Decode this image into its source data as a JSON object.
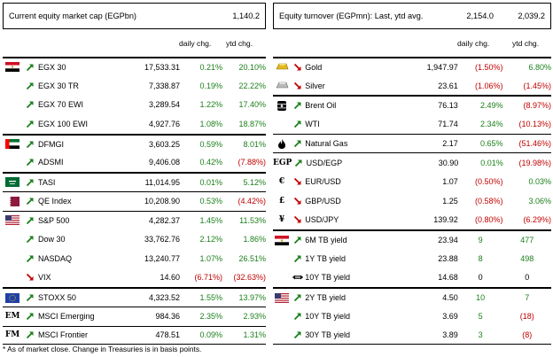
{
  "left": {
    "title": "Current equity market cap (EGPbn)",
    "value": "1,140.2",
    "col_daily": "daily chg.",
    "col_ytd": "ytd chg.",
    "rows": [
      {
        "name": "EGX 30",
        "value": "17,533.31",
        "daily": "0.21%",
        "ytd": "20.10%",
        "flag": "egypt-flag-icon",
        "dir": "up",
        "dtone": "pos",
        "ytone": "pos",
        "sep": "sep2"
      },
      {
        "name": "EGX 30 TR",
        "value": "7,338.87",
        "daily": "0.19%",
        "ytd": "22.22%",
        "dir": "up",
        "dtone": "pos",
        "ytone": "pos"
      },
      {
        "name": "EGX 70 EWI",
        "value": "3,289.54",
        "daily": "1.22%",
        "ytd": "17.40%",
        "dir": "up",
        "dtone": "pos",
        "ytone": "pos"
      },
      {
        "name": "EGX 100 EWI",
        "value": "4,927.76",
        "daily": "1.08%",
        "ytd": "18.87%",
        "dir": "up",
        "dtone": "pos",
        "ytone": "pos"
      },
      {
        "name": "DFMGI",
        "value": "3,603.25",
        "daily": "0.59%",
        "ytd": "8.01%",
        "flag": "uae-flag-icon",
        "dir": "up",
        "dtone": "pos",
        "ytone": "pos",
        "sep": "sep2"
      },
      {
        "name": "ADSMI",
        "value": "9,406.08",
        "daily": "0.42%",
        "ytd": "(7.88%)",
        "dir": "up",
        "dtone": "pos",
        "ytone": "neg"
      },
      {
        "name": "TASI",
        "value": "11,014.95",
        "daily": "0.01%",
        "ytd": "5.12%",
        "flag": "saudi-flag-icon",
        "dir": "up",
        "dtone": "pos",
        "ytone": "pos",
        "sep": "sep2"
      },
      {
        "name": "QE Index",
        "value": "10,208.90",
        "daily": "0.53%",
        "ytd": "(4.42%)",
        "flag": "qatar-flag-icon",
        "dir": "up",
        "dtone": "pos",
        "ytone": "neg",
        "sep": "sep"
      },
      {
        "name": "S&P 500",
        "value": "4,282.37",
        "daily": "1.45%",
        "ytd": "11.53%",
        "flag": "usa-flag-icon",
        "dir": "up",
        "dtone": "pos",
        "ytone": "pos",
        "sep": "sep"
      },
      {
        "name": "Dow 30",
        "value": "33,762.76",
        "daily": "2.12%",
        "ytd": "1.86%",
        "dir": "up",
        "dtone": "pos",
        "ytone": "pos"
      },
      {
        "name": "NASDAQ",
        "value": "13,240.77",
        "daily": "1.07%",
        "ytd": "26.51%",
        "dir": "up",
        "dtone": "pos",
        "ytone": "pos"
      },
      {
        "name": "VIX",
        "value": "14.60",
        "daily": "(6.71%)",
        "ytd": "(32.63%)",
        "dir": "down",
        "dtone": "neg",
        "ytone": "neg"
      },
      {
        "name": "STOXX 50",
        "value": "4,323.52",
        "daily": "1.55%",
        "ytd": "13.97%",
        "flag": "eu-flag-icon",
        "dir": "up",
        "dtone": "pos",
        "ytone": "pos",
        "sep": "sep2"
      },
      {
        "name": "MSCI Emerging",
        "value": "984.36",
        "daily": "2.35%",
        "ytd": "2.93%",
        "flag": "em-text-icon",
        "icontext": "EM",
        "dir": "up",
        "dtone": "pos",
        "ytone": "pos",
        "sep": "sep"
      },
      {
        "name": "MSCI Frontier",
        "value": "478.51",
        "daily": "0.09%",
        "ytd": "1.31%",
        "flag": "fm-text-icon",
        "icontext": "FM",
        "dir": "up",
        "dtone": "pos",
        "ytone": "pos",
        "sep": "sep"
      }
    ]
  },
  "right": {
    "title": "Equity turnover (EGPmn): Last, ytd avg.",
    "value1": "2,154.0",
    "value2": "2,039.2",
    "col_daily": "daily chg.",
    "col_ytd": "ytd chg.",
    "rows": [
      {
        "name": "Gold",
        "value": "1,947.97",
        "daily": "(1.50%)",
        "ytd": "6.80%",
        "flag": "gold-bar-icon",
        "dir": "down",
        "dtone": "neg",
        "ytone": "pos",
        "sep": "sep2"
      },
      {
        "name": "Silver",
        "value": "23.61",
        "daily": "(1.06%)",
        "ytd": "(1.45%)",
        "flag": "silver-bar-icon",
        "dir": "down",
        "dtone": "neg",
        "ytone": "neg"
      },
      {
        "name": "Brent Oil",
        "value": "76.13",
        "daily": "2.49%",
        "ytd": "(8.97%)",
        "flag": "oil-barrel-icon",
        "dir": "up",
        "dtone": "pos",
        "ytone": "neg",
        "sep": "sep2"
      },
      {
        "name": "WTI",
        "value": "71.74",
        "daily": "2.34%",
        "ytd": "(10.13%)",
        "dir": "up",
        "dtone": "pos",
        "ytone": "neg"
      },
      {
        "name": "Natural Gas",
        "value": "2.17",
        "daily": "0.65%",
        "ytd": "(51.46%)",
        "flag": "flame-icon",
        "dir": "up",
        "dtone": "pos",
        "ytone": "neg",
        "sep": "sep"
      },
      {
        "name": "USD/EGP",
        "value": "30.90",
        "daily": "0.01%",
        "ytd": "(19.98%)",
        "flag": "egp-text-icon",
        "icontext": "EGP",
        "dir": "up",
        "dtone": "pos",
        "ytone": "neg",
        "sep": "sep"
      },
      {
        "name": "EUR/USD",
        "value": "1.07",
        "daily": "(0.50%)",
        "ytd": "0.03%",
        "flag": "euro-sign-icon",
        "icontext": "€",
        "dir": "down",
        "dtone": "neg",
        "ytone": "pos"
      },
      {
        "name": "GBP/USD",
        "value": "1.25",
        "daily": "(0.58%)",
        "ytd": "3.06%",
        "flag": "pound-sign-icon",
        "icontext": "£",
        "dir": "down",
        "dtone": "neg",
        "ytone": "pos"
      },
      {
        "name": "USD/JPY",
        "value": "139.92",
        "daily": "(0.80%)",
        "ytd": "(6.29%)",
        "flag": "yen-sign-icon",
        "icontext": "¥",
        "dir": "down",
        "dtone": "neg",
        "ytone": "neg"
      },
      {
        "name": "6M TB yield",
        "value": "23.94",
        "daily": "9",
        "ytd": "477",
        "flag": "egypt-flag-icon",
        "dir": "up",
        "dtone": "pos",
        "ytone": "pos",
        "sep": "sep2",
        "ctr": true
      },
      {
        "name": "1Y TB yield",
        "value": "23.88",
        "daily": "8",
        "ytd": "498",
        "dir": "up",
        "dtone": "pos",
        "ytone": "pos",
        "ctr": true
      },
      {
        "name": "10Y TB yield",
        "value": "14.68",
        "daily": "0",
        "ytd": "0",
        "dir": "flat",
        "dtone": "plain",
        "ytone": "plain",
        "ctr": true
      },
      {
        "name": "2Y TB yield",
        "value": "4.50",
        "daily": "10",
        "ytd": "7",
        "flag": "usa-flag-icon",
        "dir": "up",
        "dtone": "pos",
        "ytone": "pos",
        "sep": "sep2",
        "ctr": true
      },
      {
        "name": "10Y TB yield",
        "value": "3.69",
        "daily": "5",
        "ytd": "(18)",
        "dir": "up",
        "dtone": "pos",
        "ytone": "neg",
        "ctr": true
      },
      {
        "name": "30Y TB yield",
        "value": "3.89",
        "daily": "3",
        "ytd": "(8)",
        "dir": "up",
        "dtone": "pos",
        "ytone": "neg",
        "ctr": true
      }
    ]
  },
  "footnote": "* As of market close. Change in Treasuries is in basis points."
}
